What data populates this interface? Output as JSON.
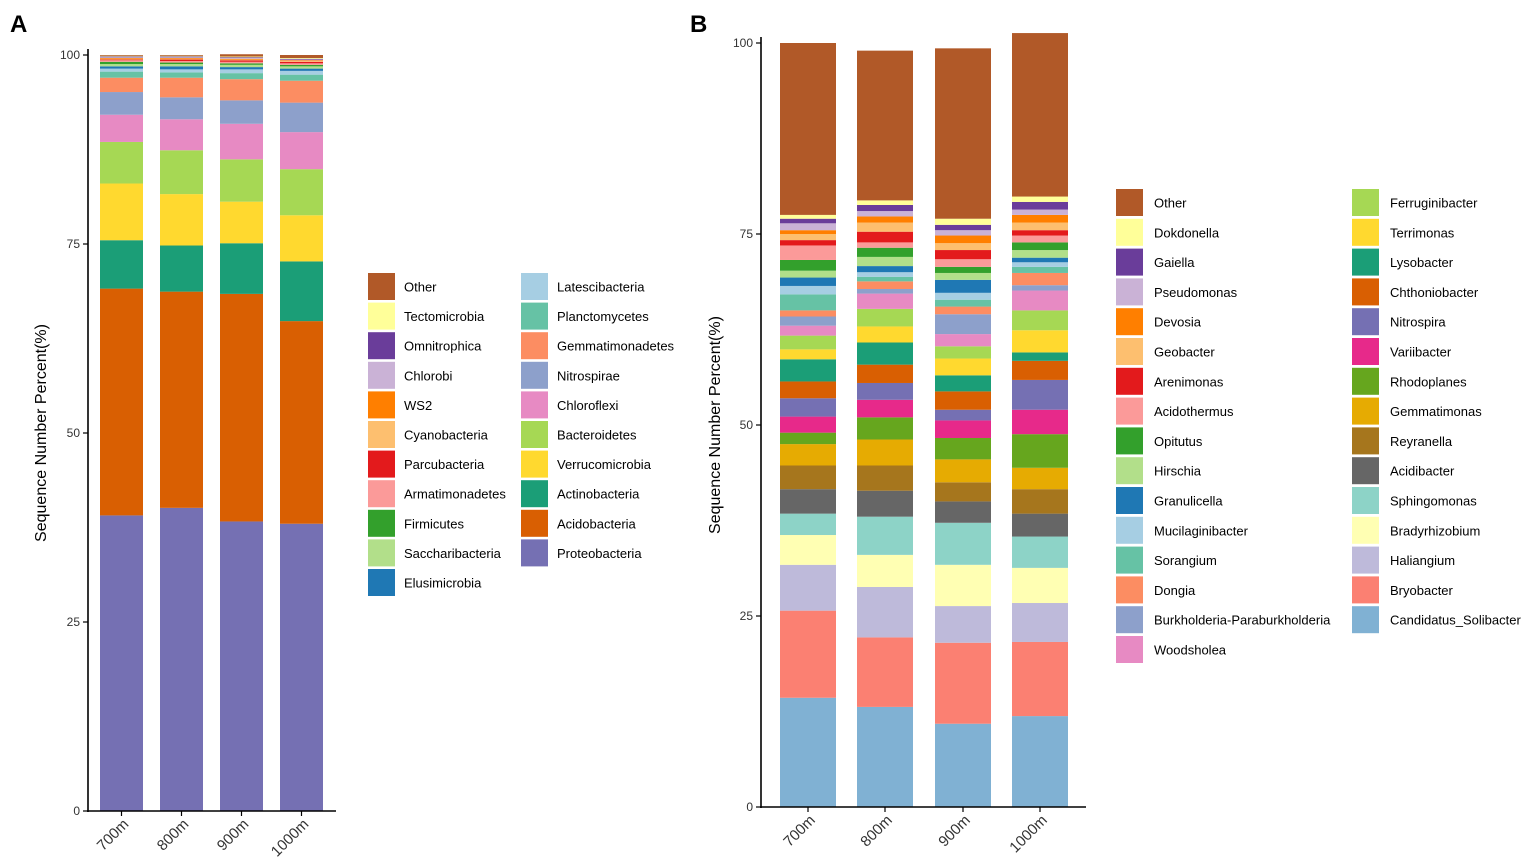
{
  "panels": {
    "a": {
      "label": "A"
    },
    "b": {
      "label": "B"
    }
  },
  "chart_data": [
    {
      "type": "bar",
      "stacked": true,
      "panel": "A",
      "ylabel": "Sequence Number Percent(%)",
      "xlabel": "",
      "ylim": [
        0,
        100
      ],
      "yticks": [
        0,
        25,
        50,
        75,
        100
      ],
      "categories": [
        "700m",
        "800m",
        "900m",
        "1000m"
      ],
      "series": [
        {
          "name": "Proteobacteria",
          "color": "#7570b3",
          "values": [
            39.1,
            40.1,
            38.3,
            38.0
          ]
        },
        {
          "name": "Acidobacteria",
          "color": "#d95f02",
          "values": [
            30.0,
            28.6,
            30.1,
            26.8
          ]
        },
        {
          "name": "Actinobacteria",
          "color": "#1b9e77",
          "values": [
            6.4,
            6.1,
            6.7,
            7.9
          ]
        },
        {
          "name": "Verrucomicrobia",
          "color": "#ffd92f",
          "values": [
            7.5,
            6.8,
            5.5,
            6.1
          ]
        },
        {
          "name": "Bacteroidetes",
          "color": "#a6d854",
          "values": [
            5.5,
            5.8,
            5.6,
            6.1
          ]
        },
        {
          "name": "Chloroflexi",
          "color": "#e78ac3",
          "values": [
            3.6,
            4.1,
            4.7,
            4.9
          ]
        },
        {
          "name": "Nitrospirae",
          "color": "#8da0cb",
          "values": [
            3.0,
            2.9,
            3.1,
            3.9
          ]
        },
        {
          "name": "Gemmatimonadetes",
          "color": "#fc8d62",
          "values": [
            1.9,
            2.6,
            2.8,
            2.9
          ]
        },
        {
          "name": "Planctomycetes",
          "color": "#66c2a5",
          "values": [
            0.8,
            0.7,
            0.8,
            0.8
          ]
        },
        {
          "name": "Latescibacteria",
          "color": "#a6cee3",
          "values": [
            0.4,
            0.4,
            0.5,
            0.5
          ]
        },
        {
          "name": "Elusimicrobia",
          "color": "#1f78b4",
          "values": [
            0.3,
            0.4,
            0.3,
            0.3
          ]
        },
        {
          "name": "Saccharibacteria",
          "color": "#b2df8a",
          "values": [
            0.3,
            0.3,
            0.3,
            0.3
          ]
        },
        {
          "name": "Firmicutes",
          "color": "#33a02c",
          "values": [
            0.3,
            0.2,
            0.2,
            0.2
          ]
        },
        {
          "name": "Armatimonadetes",
          "color": "#fb9a99",
          "values": [
            0.2,
            0.2,
            0.2,
            0.2
          ]
        },
        {
          "name": "Parcubacteria",
          "color": "#e31a1c",
          "values": [
            0.1,
            0.2,
            0.2,
            0.2
          ]
        },
        {
          "name": "Cyanobacteria",
          "color": "#fdbf6f",
          "values": [
            0.1,
            0.1,
            0.1,
            0.1
          ]
        },
        {
          "name": "WS2",
          "color": "#ff7f00",
          "values": [
            0.1,
            0.1,
            0.1,
            0.1
          ]
        },
        {
          "name": "Chlorobi",
          "color": "#cab2d6",
          "values": [
            0.1,
            0.1,
            0.1,
            0.1
          ]
        },
        {
          "name": "Omnitrophica",
          "color": "#6a3d9a",
          "values": [
            0.1,
            0.1,
            0.1,
            0.1
          ]
        },
        {
          "name": "Tectomicrobia",
          "color": "#ffff99",
          "values": [
            0.1,
            0.1,
            0.1,
            0.1
          ]
        },
        {
          "name": "Other",
          "color": "#b15928",
          "values": [
            0.1,
            0.1,
            0.3,
            0.4
          ]
        }
      ],
      "legend": {
        "columns": [
          [
            "Other",
            "Tectomicrobia",
            "Omnitrophica",
            "Chlorobi",
            "WS2",
            "Cyanobacteria",
            "Parcubacteria",
            "Armatimonadetes",
            "Firmicutes",
            "Saccharibacteria",
            "Elusimicrobia"
          ],
          [
            "Latescibacteria",
            "Planctomycetes",
            "Gemmatimonadetes",
            "Nitrospirae",
            "Chloroflexi",
            "Bacteroidetes",
            "Verrucomicrobia",
            "Actinobacteria",
            "Acidobacteria",
            "Proteobacteria"
          ]
        ]
      }
    },
    {
      "type": "bar",
      "stacked": true,
      "panel": "B",
      "ylabel": "Sequence Number Percent(%)",
      "xlabel": "",
      "ylim": [
        0,
        100
      ],
      "yticks": [
        0,
        25,
        50,
        75,
        100
      ],
      "categories": [
        "700m",
        "800m",
        "900m",
        "1000m"
      ],
      "series": [
        {
          "name": "Candidatus_Solibacter",
          "color": "#80b1d3",
          "values": [
            14.3,
            13.1,
            10.9,
            11.9
          ]
        },
        {
          "name": "Bryobacter",
          "color": "#fb8072",
          "values": [
            11.4,
            9.1,
            10.6,
            9.7
          ]
        },
        {
          "name": "Haliangium",
          "color": "#bebada",
          "values": [
            6.0,
            6.6,
            4.8,
            5.1
          ]
        },
        {
          "name": "Bradyrhizobium",
          "color": "#ffffb3",
          "values": [
            3.9,
            4.2,
            5.4,
            4.6
          ]
        },
        {
          "name": "Sphingomonas",
          "color": "#8dd3c7",
          "values": [
            2.8,
            5.0,
            5.5,
            4.1
          ]
        },
        {
          "name": "Acidibacter",
          "color": "#666666",
          "values": [
            3.2,
            3.4,
            2.8,
            3.0
          ]
        },
        {
          "name": "Reyranella",
          "color": "#a6761d",
          "values": [
            3.1,
            3.3,
            2.5,
            3.2
          ]
        },
        {
          "name": "Gemmatimonas",
          "color": "#e6ab02",
          "values": [
            2.8,
            3.4,
            3.0,
            2.8
          ]
        },
        {
          "name": "Rhodoplanes",
          "color": "#66a61e",
          "values": [
            1.5,
            2.9,
            2.8,
            4.4
          ]
        },
        {
          "name": "Variibacter",
          "color": "#e7298a",
          "values": [
            2.1,
            2.3,
            2.3,
            3.2
          ]
        },
        {
          "name": "Nitrospira",
          "color": "#7570b3",
          "values": [
            2.4,
            2.2,
            1.4,
            3.9
          ]
        },
        {
          "name": "Chthoniobacter",
          "color": "#d95f02",
          "values": [
            2.2,
            2.4,
            2.4,
            2.5
          ]
        },
        {
          "name": "Lysobacter",
          "color": "#1b9e77",
          "values": [
            2.9,
            2.9,
            2.1,
            1.1
          ]
        },
        {
          "name": "Terrimonas",
          "color": "#ffd92f",
          "values": [
            1.3,
            2.1,
            2.2,
            2.9
          ]
        },
        {
          "name": "Ferruginibacter",
          "color": "#a6d854",
          "values": [
            1.8,
            2.3,
            1.6,
            2.6
          ]
        },
        {
          "name": "Woodsholea",
          "color": "#e78ac3",
          "values": [
            1.3,
            2.0,
            1.6,
            2.6
          ]
        },
        {
          "name": "Burkholderia-Paraburkholderia",
          "color": "#8da0cb",
          "values": [
            1.2,
            0.6,
            2.6,
            0.7
          ]
        },
        {
          "name": "Dongia",
          "color": "#fc8d62",
          "values": [
            0.8,
            1.0,
            1.0,
            1.6
          ]
        },
        {
          "name": "Sorangium",
          "color": "#66c2a5",
          "values": [
            2.1,
            0.6,
            0.9,
            0.8
          ]
        },
        {
          "name": "Mucilaginibacter",
          "color": "#a6cee3",
          "values": [
            1.1,
            0.6,
            0.9,
            0.6
          ]
        },
        {
          "name": "Granulicella",
          "color": "#1f78b4",
          "values": [
            1.1,
            0.8,
            1.7,
            0.6
          ]
        },
        {
          "name": "Hirschia",
          "color": "#b2df8a",
          "values": [
            0.9,
            1.2,
            0.9,
            1.0
          ]
        },
        {
          "name": "Opitutus",
          "color": "#33a02c",
          "values": [
            1.4,
            1.2,
            0.8,
            1.0
          ]
        },
        {
          "name": "Acidothermus",
          "color": "#fb9a99",
          "values": [
            1.9,
            0.7,
            1.0,
            0.9
          ]
        },
        {
          "name": "Arenimonas",
          "color": "#e31a1c",
          "values": [
            0.7,
            1.4,
            1.2,
            0.7
          ]
        },
        {
          "name": "Geobacter",
          "color": "#fdbf6f",
          "values": [
            0.8,
            1.2,
            0.9,
            1.0
          ]
        },
        {
          "name": "Devosia",
          "color": "#ff7f00",
          "values": [
            0.5,
            0.8,
            1.0,
            1.0
          ]
        },
        {
          "name": "Pseudomonas",
          "color": "#cab2d6",
          "values": [
            0.9,
            0.7,
            0.7,
            0.7
          ]
        },
        {
          "name": "Gaiella",
          "color": "#6a3d9a",
          "values": [
            0.6,
            0.8,
            0.7,
            1.0
          ]
        },
        {
          "name": "Dokdonella",
          "color": "#ffff99",
          "values": [
            0.5,
            0.6,
            0.8,
            0.7
          ]
        },
        {
          "name": "Other",
          "color": "#b15928",
          "values": [
            22.5,
            19.6,
            22.3,
            21.4
          ]
        }
      ],
      "legend": {
        "columns": [
          [
            "Other",
            "Dokdonella",
            "Gaiella",
            "Pseudomonas",
            "Devosia",
            "Geobacter",
            "Arenimonas",
            "Acidothermus",
            "Opitutus",
            "Hirschia",
            "Granulicella",
            "Mucilaginibacter",
            "Sorangium",
            "Dongia",
            "Burkholderia-Paraburkholderia",
            "Woodsholea"
          ],
          [
            "Ferruginibacter",
            "Terrimonas",
            "Lysobacter",
            "Chthoniobacter",
            "Nitrospira",
            "Variibacter",
            "Rhodoplanes",
            "Gemmatimonas",
            "Reyranella",
            "Acidibacter",
            "Sphingomonas",
            "Bradyrhizobium",
            "Haliangium",
            "Bryobacter",
            "Candidatus_Solibacter"
          ]
        ]
      }
    }
  ]
}
